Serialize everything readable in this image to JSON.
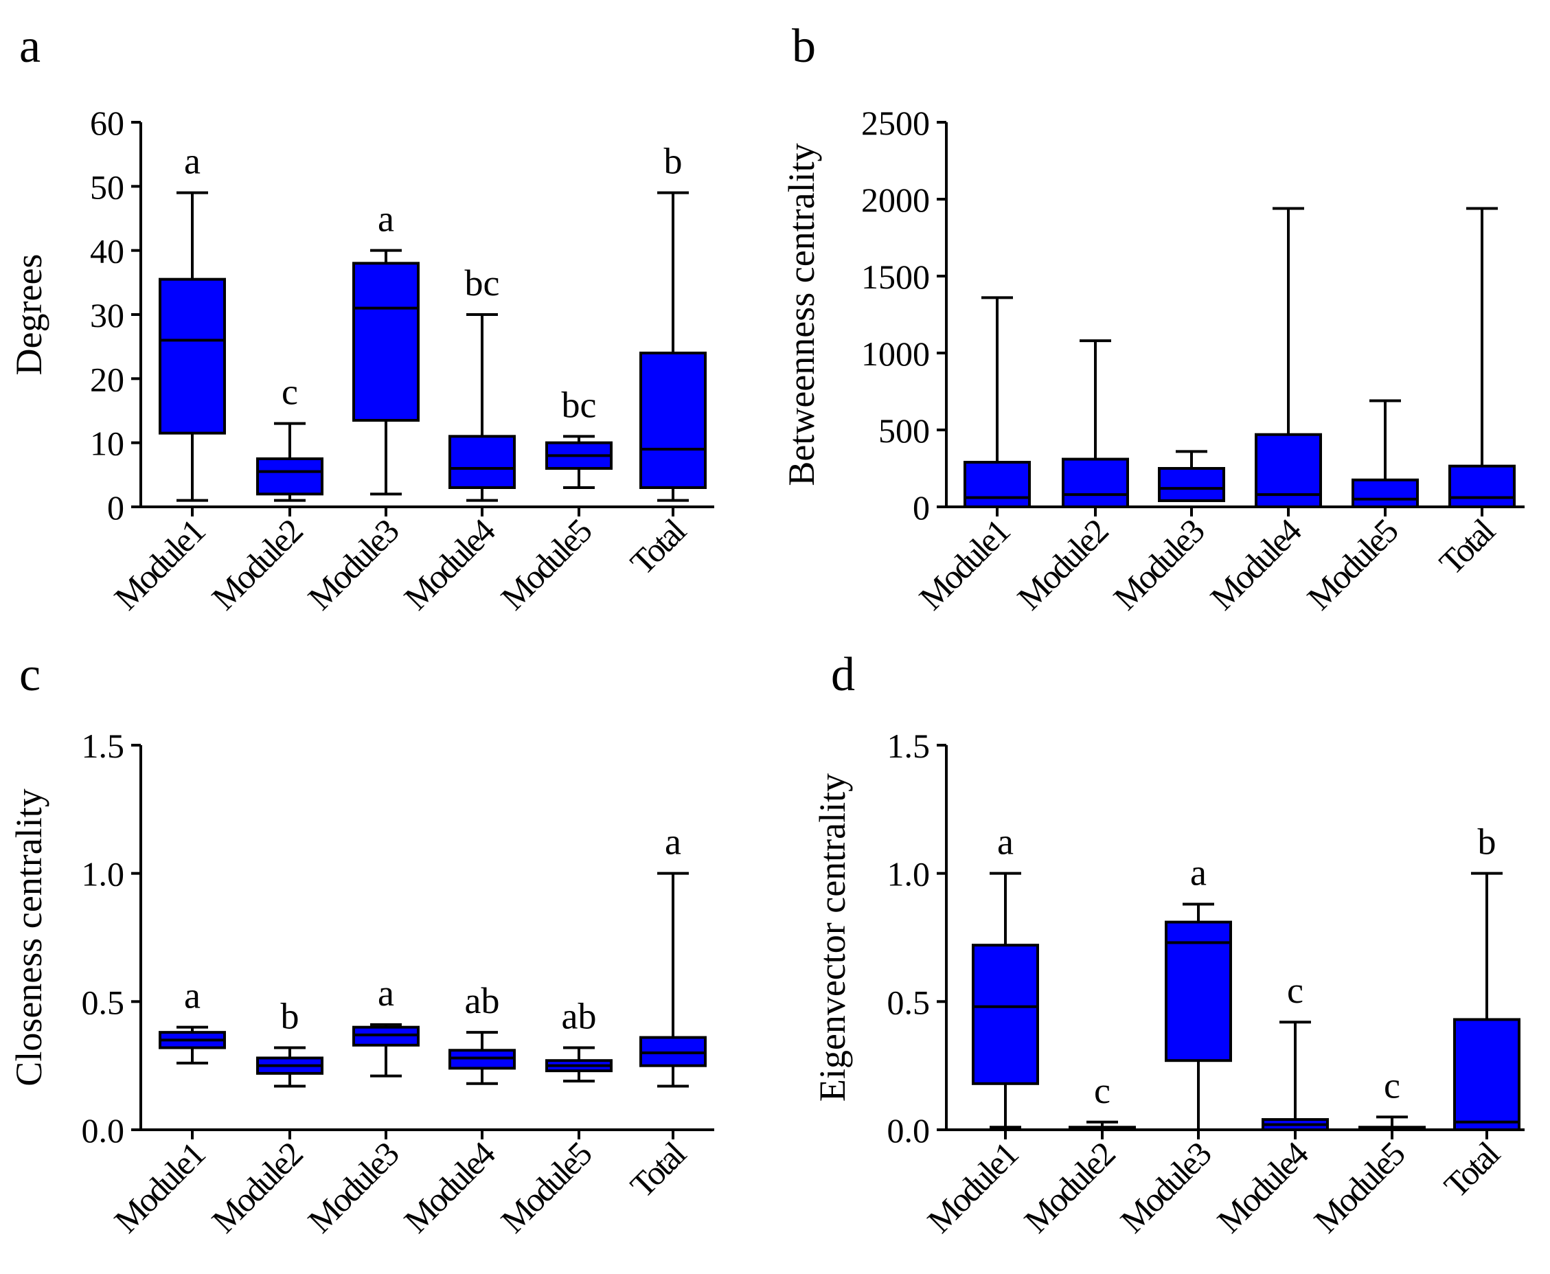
{
  "colors": {
    "box_fill": "#0000ff",
    "stroke": "#000000",
    "background": "#ffffff"
  },
  "chart_data": [
    {
      "panel": "a",
      "type": "box",
      "ylabel": "Degrees",
      "ylim": [
        0,
        60
      ],
      "yticks": [
        "0",
        "10",
        "20",
        "30",
        "40",
        "50",
        "60"
      ],
      "categories": [
        "Module1",
        "Module2",
        "Module3",
        "Module4",
        "Module5",
        "Total"
      ],
      "boxes": [
        {
          "min": 1,
          "q1": 11.5,
          "median": 26,
          "q3": 35.5,
          "max": 49
        },
        {
          "min": 1,
          "q1": 2,
          "median": 5.5,
          "q3": 7.5,
          "max": 13
        },
        {
          "min": 2,
          "q1": 13.5,
          "median": 31,
          "q3": 38,
          "max": 40
        },
        {
          "min": 1,
          "q1": 3,
          "median": 6,
          "q3": 11,
          "max": 30
        },
        {
          "min": 3,
          "q1": 6,
          "median": 8,
          "q3": 10,
          "max": 11
        },
        {
          "min": 1,
          "q1": 3,
          "median": 9,
          "q3": 24,
          "max": 49
        }
      ],
      "significance": [
        "a",
        "c",
        "a",
        "bc",
        "bc",
        "b"
      ]
    },
    {
      "panel": "b",
      "type": "box",
      "ylabel": "Betweenness centrality",
      "ylim": [
        0,
        2500
      ],
      "yticks": [
        "0",
        "500",
        "1000",
        "1500",
        "2000",
        "2500"
      ],
      "categories": [
        "Module1",
        "Module2",
        "Module3",
        "Module4",
        "Module5",
        "Total"
      ],
      "boxes": [
        {
          "min": 0,
          "q1": 0,
          "median": 60,
          "q3": 290,
          "max": 1360
        },
        {
          "min": 0,
          "q1": 0,
          "median": 80,
          "q3": 310,
          "max": 1080
        },
        {
          "min": 40,
          "q1": 40,
          "median": 120,
          "q3": 250,
          "max": 360
        },
        {
          "min": 0,
          "q1": 0,
          "median": 80,
          "q3": 470,
          "max": 1940
        },
        {
          "min": 0,
          "q1": 0,
          "median": 50,
          "q3": 175,
          "max": 690
        },
        {
          "min": 0,
          "q1": 0,
          "median": 60,
          "q3": 265,
          "max": 1940
        }
      ],
      "significance": []
    },
    {
      "panel": "c",
      "type": "box",
      "ylabel": "Closeness centrality",
      "ylim": [
        0,
        1.5
      ],
      "yticks": [
        "0.0",
        "0.5",
        "1.0",
        "1.5"
      ],
      "categories": [
        "Module1",
        "Module2",
        "Module3",
        "Module4",
        "Module5",
        "Total"
      ],
      "boxes": [
        {
          "min": 0.26,
          "q1": 0.32,
          "median": 0.35,
          "q3": 0.38,
          "max": 0.4
        },
        {
          "min": 0.17,
          "q1": 0.22,
          "median": 0.25,
          "q3": 0.28,
          "max": 0.32
        },
        {
          "min": 0.21,
          "q1": 0.33,
          "median": 0.37,
          "q3": 0.4,
          "max": 0.41
        },
        {
          "min": 0.18,
          "q1": 0.24,
          "median": 0.28,
          "q3": 0.31,
          "max": 0.38
        },
        {
          "min": 0.19,
          "q1": 0.23,
          "median": 0.25,
          "q3": 0.27,
          "max": 0.32
        },
        {
          "min": 0.17,
          "q1": 0.25,
          "median": 0.3,
          "q3": 0.36,
          "max": 1.0
        }
      ],
      "significance": [
        "a",
        "b",
        "a",
        "ab",
        "ab",
        "a"
      ]
    },
    {
      "panel": "d",
      "type": "box",
      "ylabel": "Eigenvector centrality",
      "ylim": [
        0,
        1.5
      ],
      "yticks": [
        "0.0",
        "0.5",
        "1.0",
        "1.5"
      ],
      "categories": [
        "Module1",
        "Module2",
        "Module3",
        "Module4",
        "Module5",
        "Total"
      ],
      "boxes": [
        {
          "min": 0.01,
          "q1": 0.18,
          "median": 0.48,
          "q3": 0.72,
          "max": 1.0
        },
        {
          "min": 0.0,
          "q1": 0.0,
          "median": 0.005,
          "q3": 0.01,
          "max": 0.03
        },
        {
          "min": 0.0,
          "q1": 0.27,
          "median": 0.73,
          "q3": 0.81,
          "max": 0.88
        },
        {
          "min": 0.0,
          "q1": 0.0,
          "median": 0.02,
          "q3": 0.04,
          "max": 0.42
        },
        {
          "min": 0.0,
          "q1": 0.0,
          "median": 0.005,
          "q3": 0.01,
          "max": 0.05
        },
        {
          "min": 0.0,
          "q1": 0.0,
          "median": 0.03,
          "q3": 0.43,
          "max": 1.0
        }
      ],
      "significance": [
        "a",
        "c",
        "a",
        "c",
        "c",
        "b"
      ]
    }
  ]
}
